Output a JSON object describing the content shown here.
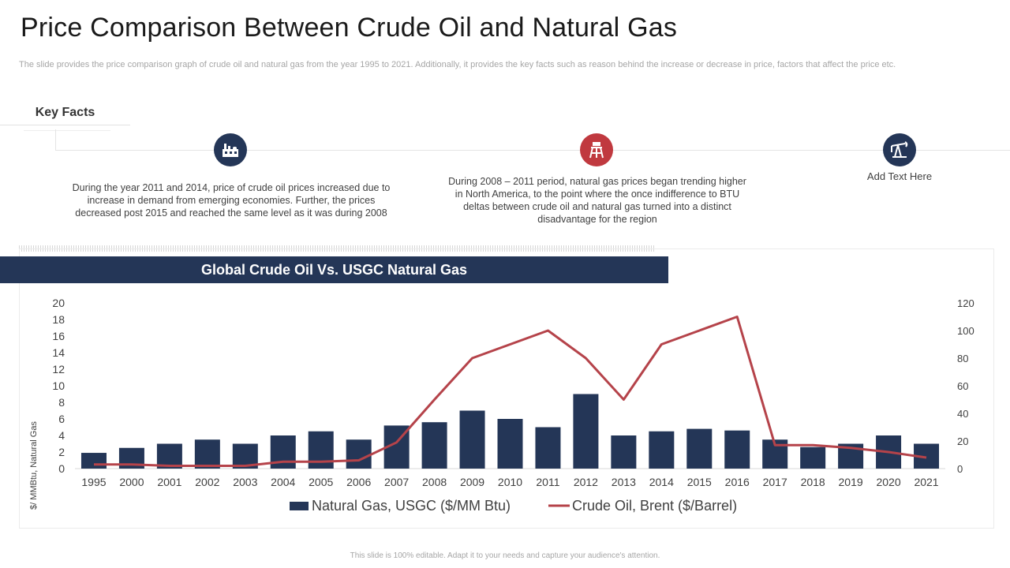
{
  "slide": {
    "title": "Price Comparison Between Crude Oil and Natural Gas",
    "subtitle": "The slide provides the price comparison graph of crude oil and natural gas from the year 1995 to 2021. Additionally, it provides the key facts such as reason behind the increase or decrease in price, factors that affect the price etc.",
    "footer": "This slide is 100% editable. Adapt it to your needs and capture your audience's attention."
  },
  "key_facts": {
    "label": "Key Facts",
    "items": [
      {
        "icon": "oil-refinery-icon",
        "icon_color": "#243657",
        "text": "During the year 2011 and 2014, price of crude oil prices increased due to increase in demand from emerging economies. Further, the prices decreased post 2015 and reached the same level as it was during 2008"
      },
      {
        "icon": "oil-rig-icon",
        "icon_color": "#c0393f",
        "text": "During 2008 – 2011 period, natural gas prices began trending higher in North America, to the point where the once indifference to BTU deltas between crude oil and natural gas turned into a distinct disadvantage for the region"
      },
      {
        "icon": "oil-pump-icon",
        "icon_color": "#243657",
        "text": "Add Text Here"
      }
    ]
  },
  "colors": {
    "navy": "#243657",
    "red": "#b5434a",
    "text": "#404040"
  },
  "chart_data": {
    "type": "bar",
    "title": "Global Crude Oil Vs. USGC Natural Gas",
    "categories": [
      "1995",
      "2000",
      "2001",
      "2002",
      "2003",
      "2004",
      "2005",
      "2006",
      "2007",
      "2008",
      "2009",
      "2010",
      "2011",
      "2012",
      "2013",
      "2014",
      "2015",
      "2016",
      "2017",
      "2018",
      "2019",
      "2020",
      "2021"
    ],
    "series": [
      {
        "name": "Natural Gas, USGC ($/MM Btu)",
        "type": "bar",
        "axis": "left",
        "values": [
          1.9,
          2.5,
          3.0,
          3.5,
          3.0,
          4.0,
          4.5,
          3.5,
          5.2,
          5.6,
          7.0,
          6.0,
          5.0,
          9.0,
          4.0,
          4.5,
          4.8,
          4.6,
          3.5,
          2.6,
          3.0,
          4.0,
          3.0
        ]
      },
      {
        "name": "Crude Oil, Brent ($/Barrel)",
        "type": "line",
        "axis": "right",
        "values": [
          3,
          3,
          2,
          2,
          2,
          5,
          5,
          6,
          19,
          50,
          80,
          90,
          100,
          80,
          50,
          90,
          100,
          110,
          17,
          17,
          15,
          12,
          8
        ]
      }
    ],
    "ylabel": "$/ MMBtu, Natural Gas",
    "ylim": [
      0,
      20
    ],
    "yticks": [
      0,
      2,
      4,
      6,
      8,
      10,
      12,
      14,
      16,
      18,
      20
    ],
    "y2lim": [
      0,
      120
    ],
    "y2ticks": [
      0,
      20,
      40,
      60,
      80,
      100,
      120
    ],
    "legend": "bottom-center"
  }
}
